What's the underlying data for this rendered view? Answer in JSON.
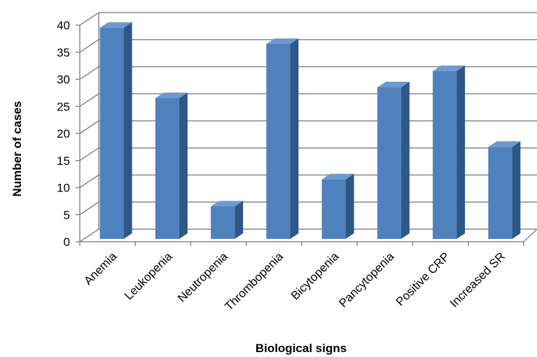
{
  "chart_data": {
    "type": "bar",
    "style": "3d-column",
    "categories": [
      "Anemia",
      "Leukopenia",
      "Neutropenia",
      "Thrombopenia",
      "Bicytopenia",
      "Pancytopenia",
      "Positive CRP",
      "Increased SR"
    ],
    "values": [
      39,
      26,
      6,
      36,
      11,
      28,
      31,
      17
    ],
    "xlabel": "Biological signs",
    "ylabel": "Number of cases",
    "ylim": [
      0,
      40
    ],
    "yticks": [
      0,
      5,
      10,
      15,
      20,
      25,
      30,
      35,
      40
    ],
    "grid": true,
    "legend": "none",
    "colors": {
      "bar_front": "#4f81bd",
      "bar_side": "#2d5786",
      "bar_top": "#6f9ad0",
      "grid": "#888888"
    }
  }
}
